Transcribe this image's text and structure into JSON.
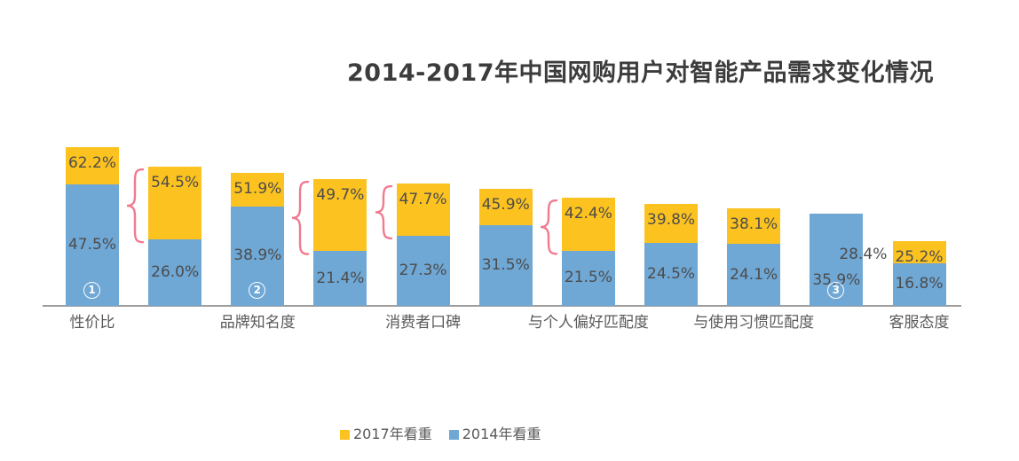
{
  "title": "2014-2017年中国网购用户对智能产品需求变化情况",
  "colors": {
    "series_2017": "#FCC220",
    "series_2014": "#6FA7D5",
    "brace": "#F07A8E",
    "axis_line": "#9D9D9D",
    "value_label": "#4C4C4C",
    "category_label": "#5A5A5A",
    "title_text": "#3C3C3C",
    "legend_text": "#595959",
    "marker_text": "#FFFFFF"
  },
  "chart_data": {
    "type": "bar",
    "stacked": true,
    "unit": "%",
    "title": "2014-2017年中国网购用户对智能产品需求变化情况",
    "xlabel": "",
    "ylabel": "",
    "grid": false,
    "legend_position": "bottom",
    "x_categories_visible": [
      "性价比",
      "",
      "品牌知名度",
      "",
      "消费者口碑",
      "",
      "与个人偏好匹配度",
      "",
      "与使用习惯匹配度",
      "",
      "客服态度"
    ],
    "series": [
      {
        "name": "2017年看重",
        "color": "#FCC220",
        "values": [
          62.2,
          54.5,
          51.9,
          49.7,
          47.7,
          45.9,
          42.4,
          39.8,
          38.1,
          28.4,
          25.2
        ]
      },
      {
        "name": "2014年看重",
        "color": "#6FA7D5",
        "values": [
          47.5,
          26.0,
          38.9,
          21.4,
          27.3,
          31.5,
          21.5,
          24.5,
          24.1,
          35.9,
          16.8
        ]
      }
    ],
    "annotations": {
      "circled_markers": [
        {
          "bar_index": 0,
          "text": "1"
        },
        {
          "bar_index": 2,
          "text": "2"
        },
        {
          "bar_index": 9,
          "text": "3"
        }
      ],
      "braces_on_bars": [
        1,
        3,
        4,
        6
      ],
      "outside_2017_label_bar": 9
    }
  },
  "legend": {
    "items": [
      {
        "label": "2017年看重"
      },
      {
        "label": "2014年看重"
      }
    ]
  }
}
